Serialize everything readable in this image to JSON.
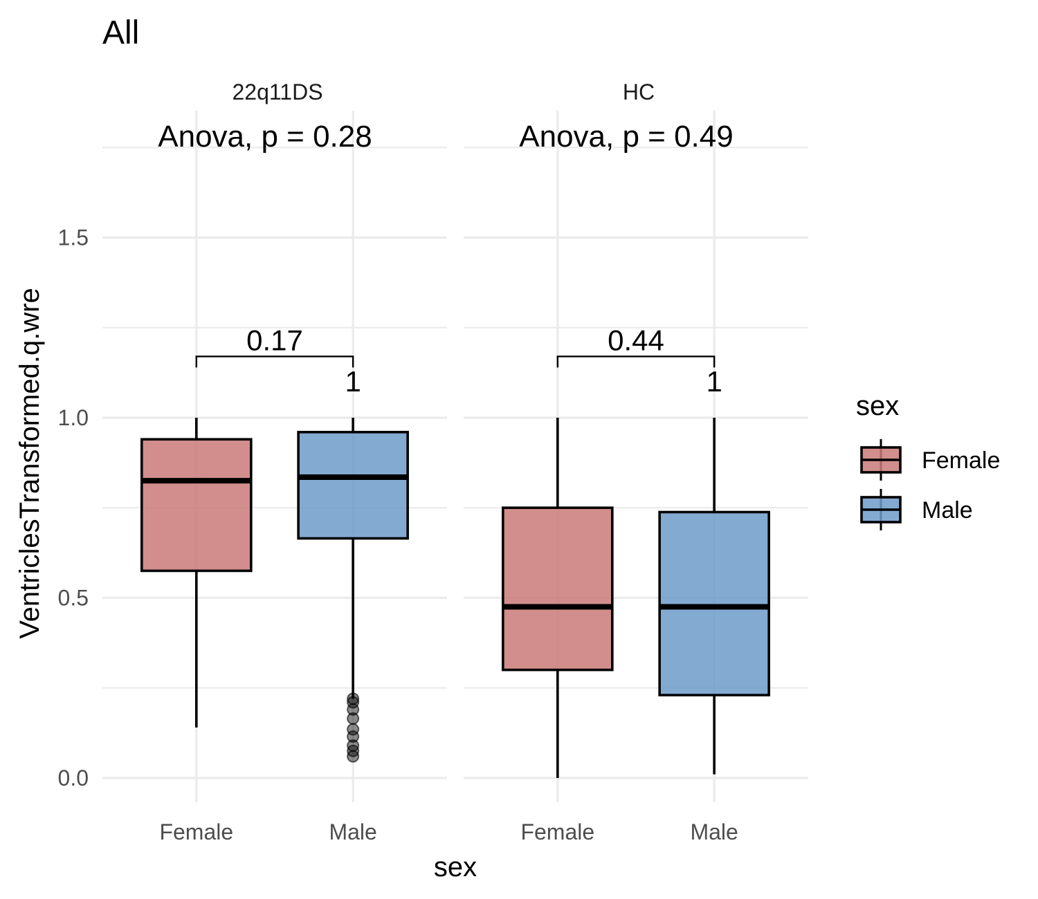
{
  "chart_data": {
    "type": "boxplot",
    "title": "All",
    "xlabel": "sex",
    "ylabel": "VentriclesTransformed.q.wre",
    "ylim": [
      -0.08,
      1.78
    ],
    "yticks": [
      0.0,
      0.5,
      1.0,
      1.5
    ],
    "ytick_labels": [
      "0.0",
      "0.5",
      "1.0",
      "1.5"
    ],
    "categories": [
      "Female",
      "Male"
    ],
    "grid": true,
    "legend": {
      "title": "sex",
      "position": "right",
      "entries": [
        {
          "name": "Female",
          "color": "#c97a78"
        },
        {
          "name": "Male",
          "color": "#6d9bc9"
        }
      ]
    },
    "panels": [
      {
        "label": "22q11DS",
        "annotation": "Anova, p = 0.28",
        "comparison": {
          "label": "0.17",
          "y": 1.17
        },
        "extra_label": {
          "text": "1",
          "category": "Male",
          "y": 1.1
        },
        "boxes": [
          {
            "category": "Female",
            "whisker_low": 0.14,
            "q1": 0.575,
            "median": 0.825,
            "q3": 0.94,
            "whisker_high": 1.0,
            "outliers": []
          },
          {
            "category": "Male",
            "whisker_low": 0.22,
            "q1": 0.665,
            "median": 0.835,
            "q3": 0.96,
            "whisker_high": 1.0,
            "outliers": [
              0.06,
              0.075,
              0.09,
              0.115,
              0.135,
              0.165,
              0.19,
              0.21,
              0.22
            ]
          }
        ]
      },
      {
        "label": "HC",
        "annotation": "Anova, p = 0.49",
        "comparison": {
          "label": "0.44",
          "y": 1.17
        },
        "extra_label": {
          "text": "1",
          "category": "Male",
          "y": 1.1
        },
        "boxes": [
          {
            "category": "Female",
            "whisker_low": 0.0,
            "q1": 0.3,
            "median": 0.475,
            "q3": 0.75,
            "whisker_high": 1.0,
            "outliers": []
          },
          {
            "category": "Male",
            "whisker_low": 0.01,
            "q1": 0.23,
            "median": 0.475,
            "q3": 0.738,
            "whisker_high": 1.0,
            "outliers": []
          }
        ]
      }
    ]
  }
}
